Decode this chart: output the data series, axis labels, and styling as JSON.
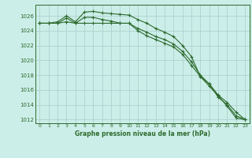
{
  "line1": [
    1025.0,
    1025.0,
    1025.2,
    1026.0,
    1025.2,
    1026.5,
    1026.6,
    1026.4,
    1026.3,
    1026.2,
    1026.1,
    1025.5,
    1025.0,
    1024.3,
    1023.8,
    1023.2,
    1022.0,
    1020.5,
    1017.8,
    1016.5,
    1015.2,
    1013.8,
    1012.2,
    1012.0
  ],
  "line2": [
    1025.0,
    1025.0,
    1025.0,
    1025.7,
    1025.0,
    1025.8,
    1025.8,
    1025.5,
    1025.3,
    1025.0,
    1025.0,
    1024.3,
    1023.8,
    1023.2,
    1022.8,
    1022.2,
    1021.2,
    1019.8,
    1018.0,
    1016.8,
    1015.0,
    1014.0,
    1012.5,
    1012.0
  ],
  "line3": [
    1025.0,
    1025.0,
    1025.0,
    1025.2,
    1025.0,
    1025.0,
    1025.0,
    1025.0,
    1025.0,
    1025.0,
    1025.0,
    1024.0,
    1023.3,
    1022.8,
    1022.3,
    1021.8,
    1020.8,
    1019.3,
    1017.8,
    1016.8,
    1015.3,
    1014.3,
    1013.0,
    1012.0
  ],
  "x": [
    0,
    1,
    2,
    3,
    4,
    5,
    6,
    7,
    8,
    9,
    10,
    11,
    12,
    13,
    14,
    15,
    16,
    17,
    18,
    19,
    20,
    21,
    22,
    23
  ],
  "line_color": "#2d6a2d",
  "bg_color": "#cceee8",
  "grid_color": "#aacccc",
  "xlabel": "Graphe pression niveau de la mer (hPa)",
  "ylim": [
    1011.5,
    1027.5
  ],
  "xlim": [
    -0.5,
    23.5
  ],
  "yticks": [
    1012,
    1014,
    1016,
    1018,
    1020,
    1022,
    1024,
    1026
  ],
  "xticks": [
    0,
    1,
    2,
    3,
    4,
    5,
    6,
    7,
    8,
    9,
    10,
    11,
    12,
    13,
    14,
    15,
    16,
    17,
    18,
    19,
    20,
    21,
    22,
    23
  ]
}
